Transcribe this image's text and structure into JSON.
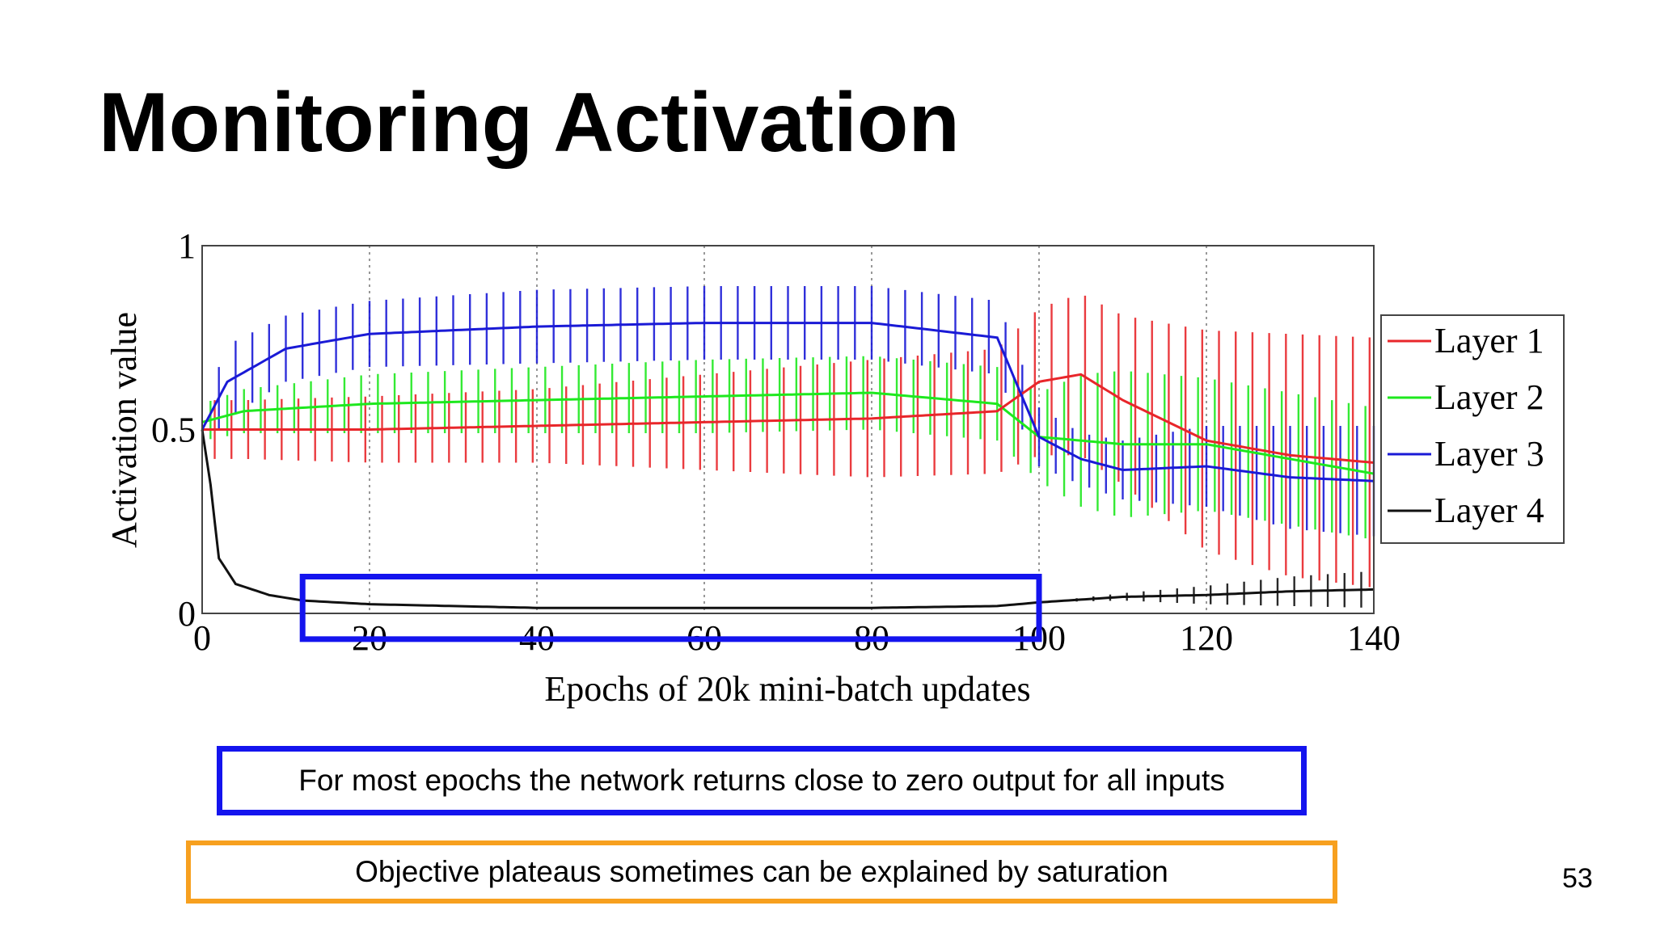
{
  "slide": {
    "title": "Monitoring Activation",
    "callout_blue": "For most epochs the network returns close to zero output for all inputs",
    "callout_orange": "Objective plateaus sometimes can be explained by saturation",
    "page_number": "53"
  },
  "chart_data": {
    "type": "line",
    "title": "",
    "xlabel": "Epochs of 20k mini-batch updates",
    "ylabel": "Activation value",
    "xlim": [
      0,
      140
    ],
    "ylim": [
      0,
      1
    ],
    "x_ticks": [
      "0",
      "20",
      "40",
      "60",
      "80",
      "100",
      "120",
      "140"
    ],
    "y_ticks": [
      "0",
      "0.5",
      "1"
    ],
    "grid": "vertical dotted",
    "legend_position": "outside-right",
    "error_bars": "vertical std bars at each sampled epoch",
    "highlight_box": {
      "x_range": [
        12,
        100
      ],
      "y_range": [
        -0.07,
        0.1
      ],
      "color": "#1414ee"
    },
    "series": [
      {
        "name": "Layer 1",
        "color": "#e8262a",
        "x": [
          0,
          5,
          20,
          40,
          60,
          80,
          95,
          100,
          105,
          110,
          120,
          130,
          140
        ],
        "values": [
          0.5,
          0.5,
          0.5,
          0.51,
          0.52,
          0.53,
          0.55,
          0.63,
          0.65,
          0.58,
          0.47,
          0.43,
          0.41
        ],
        "std": [
          0.08,
          0.08,
          0.09,
          0.1,
          0.13,
          0.16,
          0.17,
          0.2,
          0.22,
          0.23,
          0.3,
          0.33,
          0.34
        ]
      },
      {
        "name": "Layer 2",
        "color": "#1ee81e",
        "x": [
          0,
          5,
          20,
          40,
          60,
          80,
          95,
          100,
          105,
          110,
          120,
          130,
          140
        ],
        "values": [
          0.52,
          0.55,
          0.57,
          0.58,
          0.59,
          0.6,
          0.57,
          0.48,
          0.47,
          0.46,
          0.46,
          0.42,
          0.38
        ],
        "std": [
          0.05,
          0.06,
          0.08,
          0.09,
          0.1,
          0.1,
          0.1,
          0.12,
          0.18,
          0.2,
          0.18,
          0.18,
          0.18
        ]
      },
      {
        "name": "Layer 3",
        "color": "#1a1ad6",
        "x": [
          0,
          3,
          10,
          20,
          40,
          60,
          80,
          95,
          100,
          105,
          110,
          120,
          130,
          140
        ],
        "values": [
          0.5,
          0.63,
          0.72,
          0.76,
          0.78,
          0.79,
          0.79,
          0.75,
          0.48,
          0.42,
          0.39,
          0.4,
          0.37,
          0.36
        ],
        "std": [
          0.05,
          0.1,
          0.09,
          0.09,
          0.1,
          0.1,
          0.1,
          0.1,
          0.08,
          0.07,
          0.08,
          0.11,
          0.14,
          0.15
        ]
      },
      {
        "name": "Layer 4",
        "color": "#111111",
        "x": [
          0,
          1,
          2,
          4,
          8,
          12,
          20,
          40,
          60,
          80,
          95,
          100,
          110,
          120,
          130,
          140
        ],
        "values": [
          0.5,
          0.35,
          0.15,
          0.08,
          0.05,
          0.035,
          0.025,
          0.015,
          0.015,
          0.015,
          0.02,
          0.03,
          0.045,
          0.05,
          0.06,
          0.065
        ],
        "std": [
          0,
          0,
          0,
          0,
          0,
          0,
          0,
          0,
          0,
          0,
          0,
          0,
          0.01,
          0.025,
          0.04,
          0.05
        ]
      }
    ]
  }
}
